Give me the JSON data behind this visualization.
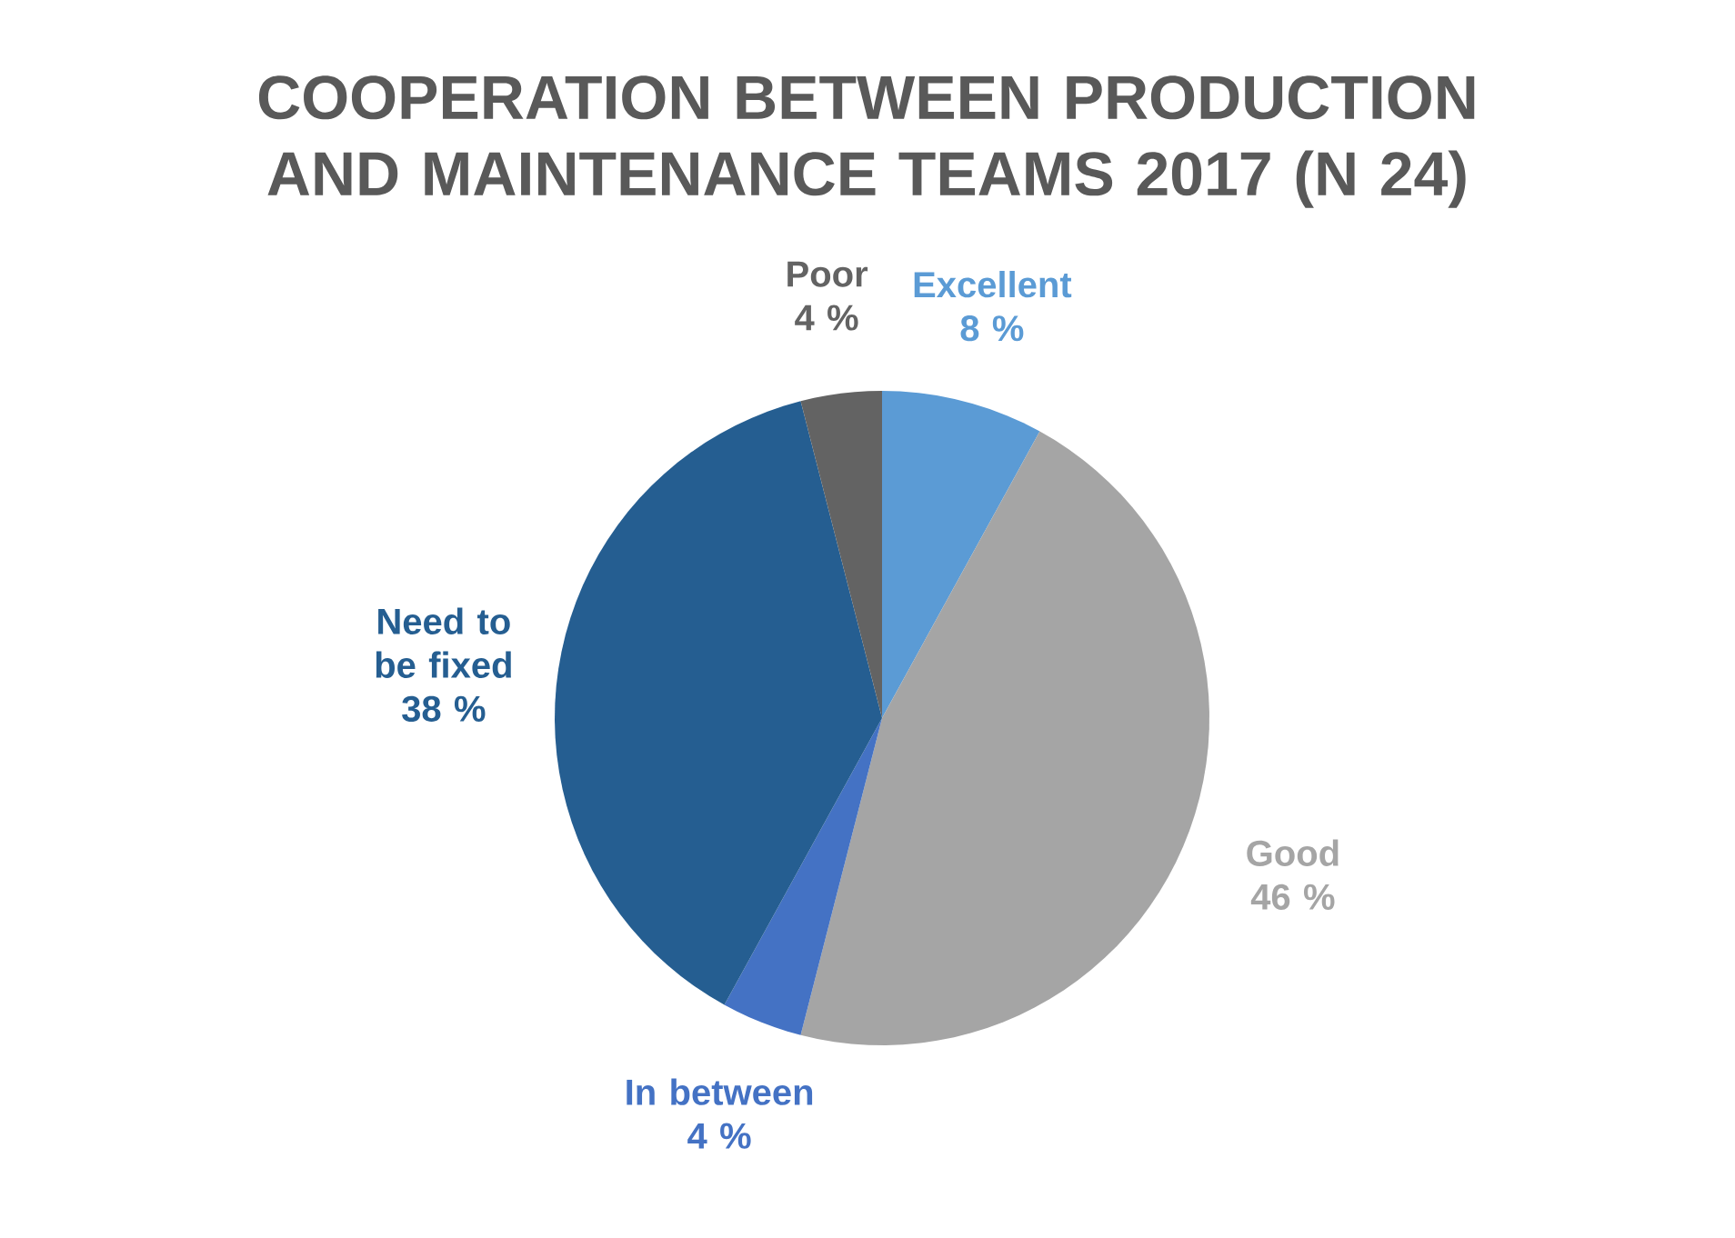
{
  "chart_data": {
    "type": "pie",
    "title": "COOPERATION BETWEEN PRODUCTION AND MAINTENANCE TEAMS 2017 (N 24)",
    "categories": [
      "Excellent",
      "Good",
      "In between",
      "Need to be fixed",
      "Poor"
    ],
    "values": [
      8,
      46,
      4,
      38,
      4
    ],
    "colors": [
      "#5b9bd5",
      "#a5a5a5",
      "#4472c4",
      "#255e91",
      "#636363"
    ],
    "value_labels": [
      "8 %",
      "46 %",
      "4 %",
      "38 %",
      "4 %"
    ]
  }
}
